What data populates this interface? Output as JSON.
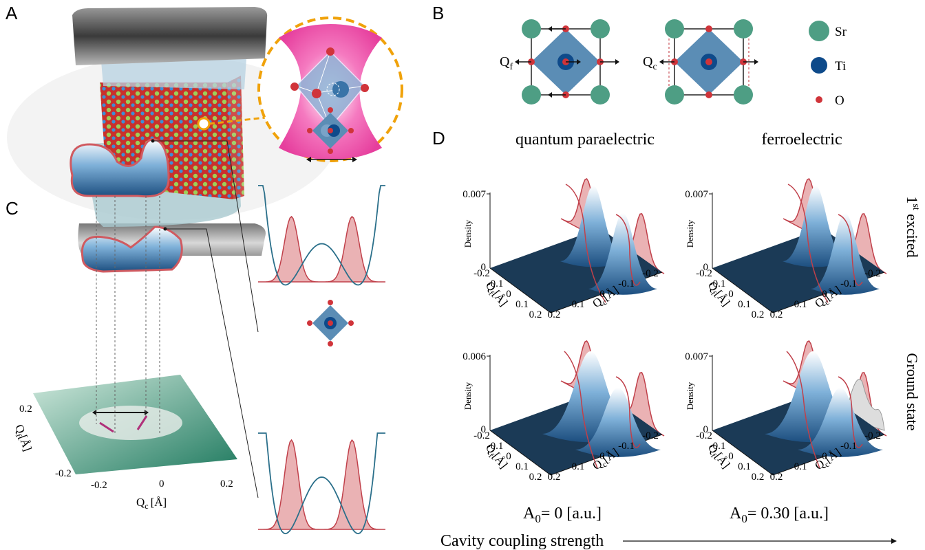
{
  "panel_labels": [
    "A",
    "B",
    "C",
    "D"
  ],
  "panel_b": {
    "modes": [
      {
        "symbol": "Q",
        "subscript": "f"
      },
      {
        "symbol": "Q",
        "subscript": "c"
      }
    ],
    "legend": [
      "Sr",
      "Ti",
      "O"
    ]
  },
  "panel_c": {
    "qf_ticks": [
      "0.2",
      "-0.2"
    ],
    "qc_ticks": [
      "-0.2",
      "0",
      "0.2"
    ],
    "qf_label": {
      "symbol": "Q",
      "subscript": "f",
      "unit": "[Å]"
    },
    "qc_label": {
      "symbol": "Q",
      "subscript": "c",
      "unit": "[Å]"
    }
  },
  "panel_d": {
    "columns": [
      "quantum paraelectric",
      "ferroelectric"
    ],
    "rows": [
      {
        "main": "1",
        "superscript": "st",
        "rest": " excited"
      },
      {
        "main": "Ground state"
      }
    ],
    "density_label": "Density",
    "plots": [
      {
        "density_ticks": [
          "0.007",
          "0"
        ]
      },
      {
        "density_ticks": [
          "0.007",
          "0"
        ]
      },
      {
        "density_ticks": [
          "0.006",
          "0"
        ]
      },
      {
        "density_ticks": [
          "0.007",
          "0"
        ]
      }
    ],
    "qf_ticks": [
      "-0.2",
      "-0.1",
      "0",
      "0.1",
      "0.2"
    ],
    "qc_ticks": [
      "0.2",
      "0.1",
      "0",
      "-0.1",
      "-0.2"
    ],
    "qf_label": {
      "symbol": "Q",
      "subscript": "f",
      "unit": "[Å]"
    },
    "qc_label": {
      "symbol": "Q",
      "subscript": "c",
      "unit": "[Å]"
    },
    "couplings": [
      {
        "symbol": "A",
        "subscript": "0",
        "rest": "= 0 [a.u.]"
      },
      {
        "symbol": "A",
        "subscript": "0",
        "rest": "= 0.30 [a.u.]"
      }
    ],
    "caption": "Cavity coupling strength"
  }
}
